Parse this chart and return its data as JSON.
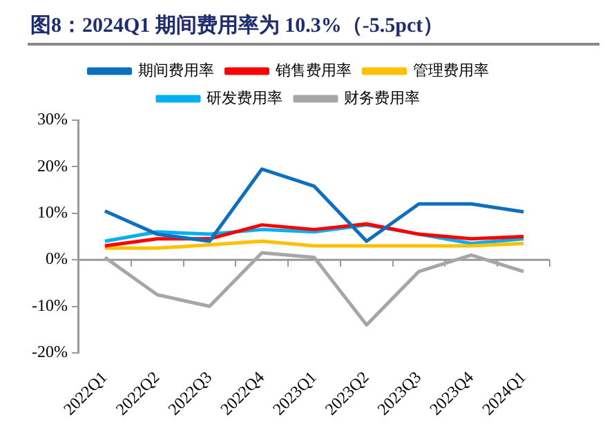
{
  "chart_data": {
    "type": "line",
    "title": "图8：2024Q1 期间费用率为 10.3%（-5.5pct）",
    "categories": [
      "2022Q1",
      "2022Q2",
      "2022Q3",
      "2022Q4",
      "2023Q1",
      "2023Q2",
      "2023Q3",
      "2023Q4",
      "2024Q1"
    ],
    "series": [
      {
        "name": "期间费用率",
        "color": "#0f6fbf",
        "values": [
          10.5,
          5.5,
          4,
          19.5,
          15.8,
          4,
          12,
          12,
          10.3
        ]
      },
      {
        "name": "销售费用率",
        "color": "#ff0000",
        "values": [
          3,
          4.5,
          4.5,
          7.5,
          6.5,
          7.7,
          5.5,
          4.5,
          5
        ]
      },
      {
        "name": "管理费用率",
        "color": "#ffc000",
        "values": [
          2.5,
          2.5,
          3.2,
          4,
          3,
          3,
          3,
          3,
          3.5
        ]
      },
      {
        "name": "研发费用率",
        "color": "#00b0f0",
        "values": [
          4,
          6,
          5.5,
          6.5,
          6,
          7.5,
          5.5,
          3.5,
          4.5
        ]
      },
      {
        "name": "财务费用率",
        "color": "#a6a6a6",
        "values": [
          0.5,
          -7.5,
          -10,
          1.5,
          0.5,
          -14,
          -2.5,
          1,
          -2.5
        ]
      }
    ],
    "ylim": [
      -20,
      30
    ],
    "yticks": [
      {
        "value": -20,
        "label": "-20%"
      },
      {
        "value": -10,
        "label": "-10%"
      },
      {
        "value": 0,
        "label": "0%"
      },
      {
        "value": 10,
        "label": "10%"
      },
      {
        "value": 20,
        "label": "20%"
      },
      {
        "value": 30,
        "label": "30%"
      }
    ],
    "ref_lines": [
      {
        "axis": "y",
        "value": 0,
        "color": "#999999"
      }
    ],
    "grid": false,
    "legend": "top",
    "marker": "none",
    "line_style": "solid"
  }
}
